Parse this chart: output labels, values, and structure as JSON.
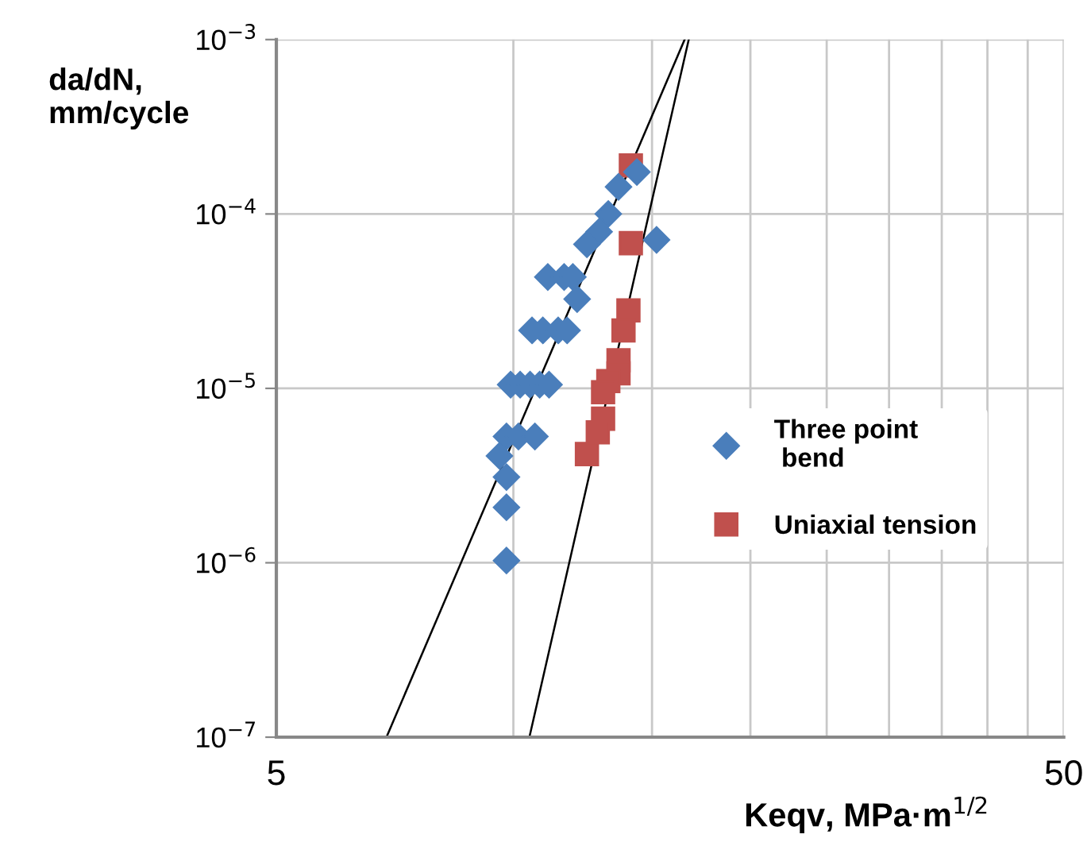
{
  "chart_data": {
    "type": "scatter",
    "xlabel": "Keqv, MPa·m$^{1/2}$",
    "ylabel": "da/dN,\nmm/cycle",
    "log": "xy",
    "grid": true,
    "legend": "right",
    "xlim": [
      5,
      50
    ],
    "ylim": [
      1e-07,
      0.001
    ],
    "xticks": [
      5,
      {
        "value": 10,
        "label": null
      },
      {
        "value": 15,
        "label": null
      },
      {
        "value": 20,
        "label": null
      },
      {
        "value": 25,
        "label": null
      },
      {
        "value": 30,
        "label": null
      },
      {
        "value": 35,
        "label": null
      },
      {
        "value": 40,
        "label": null
      },
      {
        "value": 45,
        "label": null
      },
      50
    ],
    "yticks": [
      {
        "value": 1e-07,
        "label": "10$^{−7}$"
      },
      {
        "value": 1e-06,
        "label": "10$^{−6}$"
      },
      {
        "value": 1e-05,
        "label": "10$^{−5}$"
      },
      {
        "value": 0.0001,
        "label": "10$^{−4}$"
      },
      {
        "value": 0.001,
        "label": "10$^{−3}$"
      }
    ],
    "series": [
      {
        "name": "Three point\n bend",
        "color": "#4a7ebb",
        "marker": "diamond",
        "x": [
          14.35,
          13.6,
          13.2,
          12.85,
          12.4,
          15.2,
          11.06,
          11.6,
          11.9,
          12.05,
          10.56,
          10.9,
          11.4,
          11.7,
          9.92,
          10.2,
          10.5,
          10.8,
          11.1,
          9.8,
          10.15,
          10.65,
          9.6,
          9.8,
          9.8,
          9.8
        ],
        "values": [
          0.000174,
          0.000143,
          0.0001,
          7.9e-05,
          6.7e-05,
          7.1e-05,
          4.35e-05,
          4.35e-05,
          4.35e-05,
          3.25e-05,
          2.15e-05,
          2.15e-05,
          2.15e-05,
          2.15e-05,
          1.05e-05,
          1.05e-05,
          1.05e-05,
          1.05e-05,
          1.05e-05,
          5.3e-06,
          5.3e-06,
          5.3e-06,
          4.1e-06,
          3.1e-06,
          2.08e-06,
          1.03e-06
        ]
      },
      {
        "name": "Uniaxial tension",
        "color": "#c0504d",
        "marker": "square",
        "x": [
          14.1,
          14.1,
          14.0,
          13.8,
          13.6,
          13.6,
          13.2,
          13.0,
          13.0,
          12.8,
          12.5,
          12.4
        ],
        "values": [
          0.00019,
          6.8e-05,
          2.8e-05,
          2.15e-05,
          1.45e-05,
          1.22e-05,
          1.1e-05,
          9.5e-06,
          6.7e-06,
          5.6e-06,
          null,
          4.2e-06
        ]
      },
      {
        "type": "line",
        "color": "#000000",
        "x": [
          6.9,
          16.5
        ],
        "values": [
          1e-07,
          0.001
        ]
      },
      {
        "type": "line",
        "color": "#000000",
        "x": [
          10.48,
          16.7
        ],
        "values": [
          1e-07,
          0.001
        ]
      }
    ]
  }
}
